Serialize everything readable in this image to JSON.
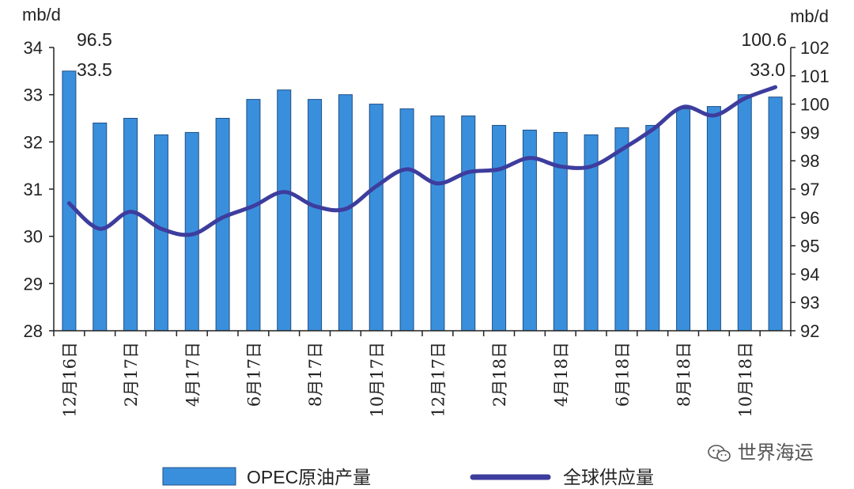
{
  "chart_data": {
    "type": "bar",
    "left_axis_label": "mb/d",
    "right_axis_label": "mb/d",
    "y_left": {
      "ylim": [
        28,
        34
      ],
      "ticks": [
        "28",
        "29",
        "30",
        "31",
        "32",
        "33",
        "34"
      ]
    },
    "y_right": {
      "ylim": [
        92,
        102
      ],
      "ticks": [
        "92",
        "93",
        "94",
        "95",
        "96",
        "97",
        "98",
        "99",
        "100",
        "101",
        "102"
      ]
    },
    "x_tick_labels": [
      "12月16日",
      "2月17日",
      "4月17日",
      "6月17日",
      "8月17日",
      "10月17日",
      "12月17日",
      "2月18日",
      "4月18日",
      "6月18日",
      "8月18日",
      "10月18日"
    ],
    "bar_series": {
      "name": "OPEC原油产量",
      "axis": "left",
      "color": "#3a8fdc",
      "values": [
        33.5,
        32.4,
        32.5,
        32.15,
        32.2,
        32.5,
        32.9,
        33.1,
        32.9,
        33.0,
        32.8,
        32.7,
        32.55,
        32.55,
        32.35,
        32.25,
        32.2,
        32.15,
        32.3,
        32.35,
        32.7,
        32.75,
        33.0,
        32.95
      ]
    },
    "line_series": {
      "name": "全球供应量",
      "axis": "right",
      "color": "#3d3d9e",
      "values": [
        96.5,
        95.6,
        96.2,
        95.6,
        95.4,
        96.0,
        96.4,
        96.9,
        96.4,
        96.3,
        97.1,
        97.7,
        97.2,
        97.6,
        97.7,
        98.1,
        97.8,
        97.8,
        98.4,
        99.1,
        99.9,
        99.6,
        100.2,
        100.6
      ]
    },
    "annotations": {
      "start_line": "96.5",
      "start_bar": "33.5",
      "end_line": "100.6",
      "end_bar": "33.0"
    },
    "legend": {
      "position": "bottom"
    }
  },
  "watermark": {
    "icon": "wechat-icon",
    "text": "世界海运"
  }
}
